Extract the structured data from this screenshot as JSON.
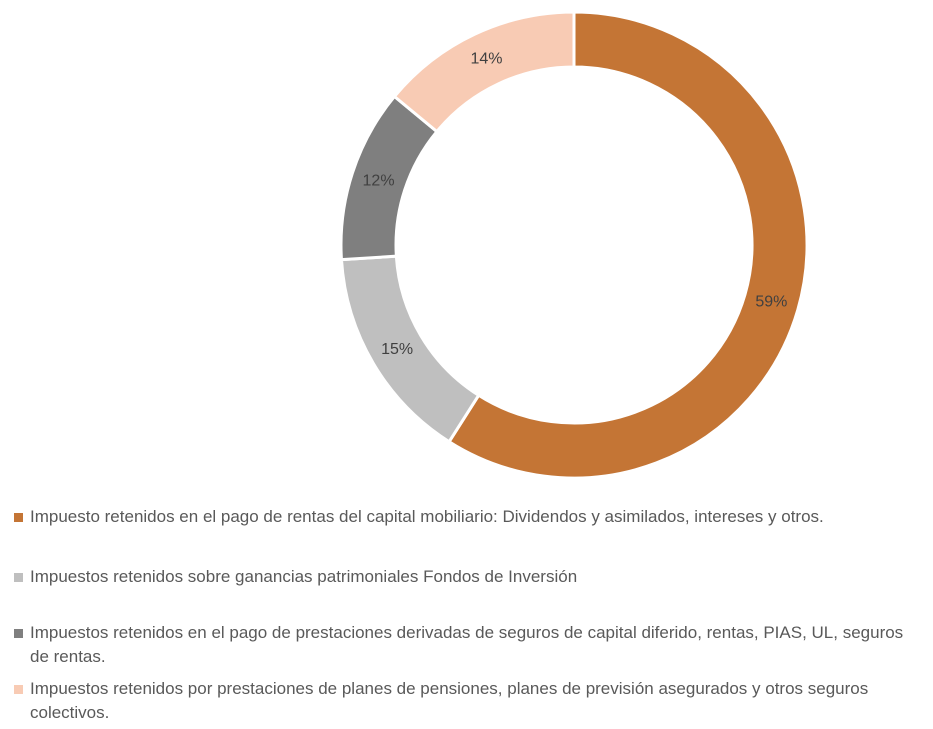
{
  "chart_data": {
    "type": "donut",
    "categories": [
      "Impuesto retenidos en el pago de rentas del capital mobiliario: Dividendos y asimilados, intereses y otros.",
      "Impuestos retenidos sobre ganancias patrimoniales Fondos de Inversión",
      "Impuestos retenidos en el pago de prestaciones derivadas de seguros de capital diferido, rentas, PIAS, UL, seguros de rentas.",
      "Impuestos retenidos por prestaciones de planes de pensiones, planes de previsión asegurados y otros seguros colectivos."
    ],
    "values": [
      59,
      15,
      12,
      14
    ],
    "value_labels": [
      "59%",
      "15%",
      "12%",
      "14%"
    ],
    "colors": [
      "#c47535",
      "#bfbfbf",
      "#7f7f7f",
      "#f8cbb4"
    ],
    "legend": "bottom"
  }
}
